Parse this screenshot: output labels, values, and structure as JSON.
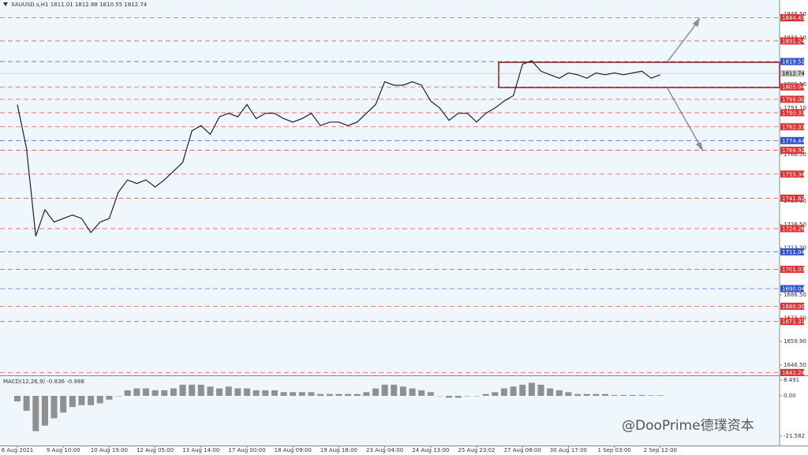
{
  "chart_data": {
    "type": "line",
    "header": {
      "symbol": "XAUUSD.s,H1",
      "open": 1811.01,
      "high": 1812.88,
      "low": 1810.55,
      "close": 1812.74
    },
    "categories": [
      "6 Aug 2021",
      null,
      null,
      null,
      null,
      "9 Aug 10:00",
      null,
      null,
      null,
      null,
      "10 Aug 19:00",
      null,
      null,
      null,
      null,
      "12 Aug 05:00",
      null,
      null,
      null,
      null,
      "13 Aug 14:00",
      null,
      null,
      null,
      null,
      "17 Aug 00:00",
      null,
      null,
      null,
      null,
      "18 Aug 09:00",
      null,
      null,
      null,
      null,
      "19 Aug 18:00",
      null,
      null,
      null,
      null,
      "23 Aug 04:00",
      null,
      null,
      null,
      null,
      "24 Aug 13:00",
      null,
      null,
      null,
      null,
      "25 Aug 23:02",
      null,
      null,
      null,
      null,
      "27 Aug 08:00",
      null,
      null,
      null,
      null,
      "30 Aug 17:00",
      null,
      null,
      null,
      null,
      "1 Sep 03:00",
      null,
      null,
      null,
      null,
      "2 Sep 12:00"
    ],
    "series": [
      {
        "color": "#222222",
        "values": [
          1795,
          1770,
          1720,
          1735,
          1728,
          1730,
          1732,
          1730,
          1722,
          1728,
          1730,
          1745,
          1752,
          1750,
          1752,
          1748,
          1752,
          1757,
          1762,
          1780,
          1783,
          1778,
          1788,
          1790,
          1788,
          1795,
          1787,
          1790,
          1790,
          1787,
          1785,
          1787,
          1790,
          1783,
          1785,
          1785,
          1783,
          1785,
          1790,
          1795,
          1808,
          1806,
          1806,
          1808,
          1806,
          1797,
          1793,
          1786,
          1790,
          1790,
          1785,
          1790,
          1793,
          1797,
          1800,
          1818,
          1820,
          1814,
          1812,
          1810,
          1813,
          1812,
          1810,
          1813,
          1812,
          1813,
          1812,
          1813,
          1814,
          1810,
          1812
        ]
      }
    ],
    "ylim": [
      1640.6,
      1854.6
    ],
    "yticks": [
      {
        "value": 1846.5,
        "label": "1846.50"
      },
      {
        "value": 1833.1,
        "label": "1833.10"
      },
      {
        "value": 1806.5,
        "label": "1806.50"
      },
      {
        "value": 1793.1,
        "label": "1793.10"
      },
      {
        "value": 1766.5,
        "label": "1766.50"
      },
      {
        "value": 1739.9,
        "label": "1739.90"
      },
      {
        "value": 1726.5,
        "label": "1726.50"
      },
      {
        "value": 1713.3,
        "label": "1713.30"
      },
      {
        "value": 1686.5,
        "label": "1686.50"
      },
      {
        "value": 1673.3,
        "label": "1673.30"
      },
      {
        "value": 1659.9,
        "label": "1659.90"
      },
      {
        "value": 1646.5,
        "label": "1646.50"
      }
    ],
    "levels": {
      "values": [
        1844.43,
        1831.24,
        1819.51,
        1812.74,
        1805.04,
        1798.0,
        1790.33,
        1782.33,
        1774.44,
        1768.92,
        1755.34,
        1741.62,
        1724.26,
        1711.04,
        1701.03,
        1690.04,
        1680.0,
        1671.31,
        1642.24
      ],
      "value_labels": [
        "1844.43",
        "1831.24",
        "1819.51",
        "1812.74",
        "1805.04",
        "1798.00",
        "1790.33",
        "1782.33",
        "1774.44",
        "1768.92",
        "1755.34",
        "1741.62",
        "1724.26",
        "1711.04",
        "1701.03",
        "1690.04",
        "1680.00",
        "1671.31",
        "1642.24"
      ],
      "colors": [
        "#e03030",
        "#e03030",
        "#3050d0",
        "#c8c8c8",
        "#e03030",
        "#e03030",
        "#e03030",
        "#e03030",
        "#3050d0",
        "#e03030",
        "#e03030",
        "#e03030",
        "#e03030",
        "#3050d0",
        "#e03030",
        "#3050d0",
        "#e03030",
        "#e03030",
        "#e03030"
      ]
    },
    "macd": {
      "label": "MACD(12,26,9)",
      "main": -0.836,
      "signal": -0.988,
      "color": "#909090",
      "values": [
        -3,
        -8,
        -19,
        -16,
        -12,
        -9,
        -6,
        -5,
        -5,
        -4,
        -2,
        0,
        3,
        4,
        4,
        3,
        3,
        4,
        6,
        6,
        6,
        5,
        4,
        5,
        4,
        4,
        3,
        3,
        3,
        2,
        2,
        2,
        2,
        1,
        1,
        1,
        1,
        1,
        2,
        4,
        6,
        6,
        5,
        4,
        3,
        2,
        0,
        -1,
        -1,
        0,
        0,
        1,
        2,
        4,
        5,
        6,
        7,
        6,
        4,
        3,
        2,
        1,
        1,
        1,
        1,
        0.5,
        0.5,
        0.5,
        0.5,
        0.3,
        0.3
      ],
      "ylim": [
        -26.7,
        10.6
      ],
      "yticks": [
        8.491,
        {
          "value": 0,
          "label": "0.00"
        },
        -21.582
      ]
    },
    "watermark": "@DooPrime德璞资本"
  }
}
